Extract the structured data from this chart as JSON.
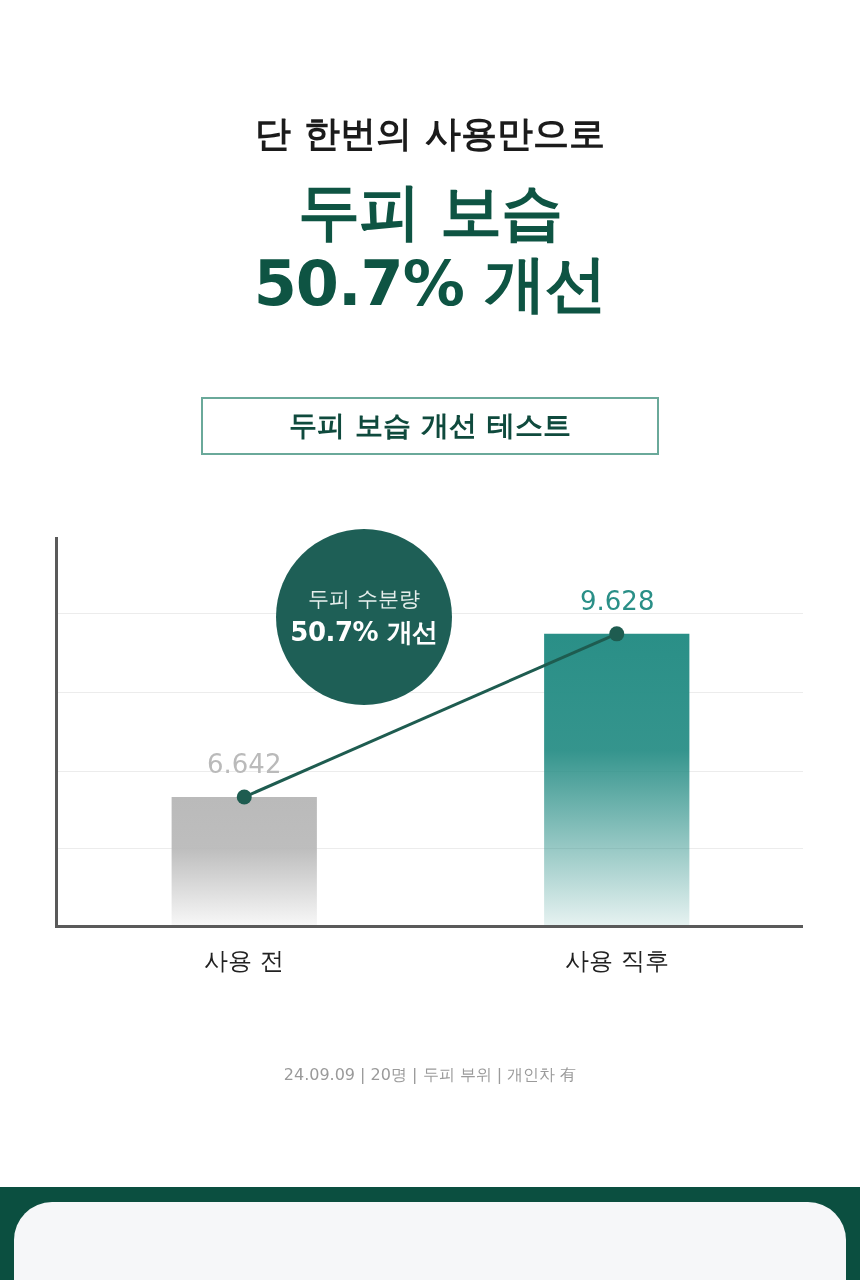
{
  "chart_data": {
    "type": "bar",
    "subtitle": "단 한번의 사용만으로",
    "title": "두피 보습\n50.7% 개선",
    "annotations": [
      "두피 보습 개선 테스트",
      "두피 수분량",
      "50.7% 개선",
      "24.09.09 | 20명 | 두피 부위 | 개인차 有"
    ],
    "categories": [
      "사용 전",
      "사용 직후"
    ],
    "series": [
      {
        "type": "bar",
        "colors": [
          "#bababa",
          "#2a8f87"
        ],
        "values": [
          6.642,
          9.628
        ]
      },
      {
        "type": "line",
        "color": "#1e5c50",
        "values": [
          6.642,
          9.628
        ],
        "value_labels": [
          "6.642",
          "9.628"
        ]
      }
    ],
    "ylim": [
      4.3,
      11.4
    ],
    "yticks": [
      {
        "value": 5.7,
        "label": null
      },
      {
        "value": 7.1,
        "label": null
      },
      {
        "value": 8.55,
        "label": null
      },
      {
        "value": 10,
        "label": null
      }
    ],
    "grid": "y",
    "tick_labels": "x",
    "marker": "circle"
  }
}
